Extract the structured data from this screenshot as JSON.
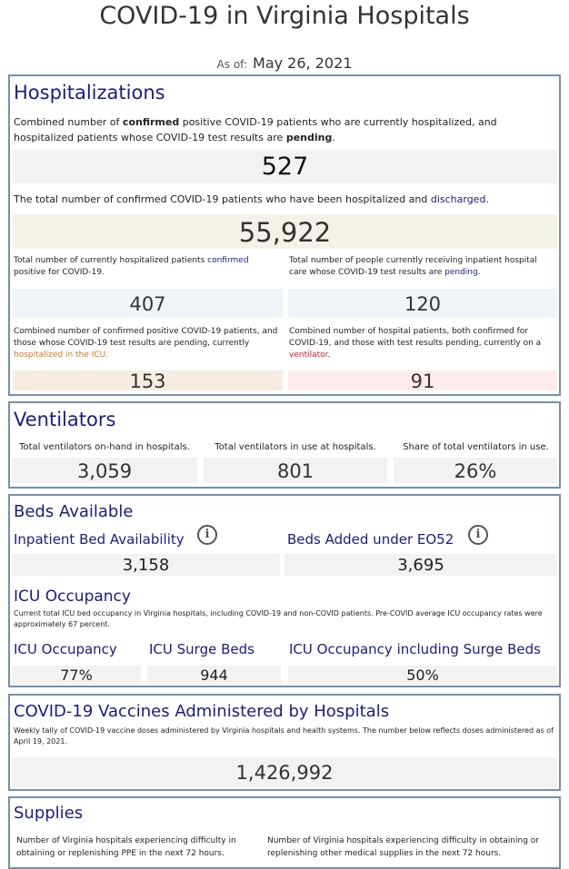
{
  "header": {
    "title": "COVID-19 in Virginia Hospitals",
    "as_of_label": "As of:",
    "as_of_date": "May 26, 2021"
  },
  "hospitalizations": {
    "title": "Hospitalizations",
    "desc1_a": "Combined number of ",
    "desc1_b": "confirmed",
    "desc1_c": " positive COVID-19 patients who are currently hospitalized, and hospitalized patients whose COVID-19 test results are ",
    "desc1_d": "pending",
    "desc1_e": ".",
    "current_total": "527",
    "desc2_a": "The total number of confirmed COVID-19 patients who have been hospitalized and ",
    "desc2_b": "discharged",
    "desc2_c": ".",
    "discharged_total": "55,922",
    "confirmed_a": "Total number of currently hospitalized patients ",
    "confirmed_b": "confirmed",
    "confirmed_c": " positive for COVID-19.",
    "confirmed_value": "407",
    "pending_a": "Total number of people currently receiving inpatient hospital care whose COVID-19 test results are ",
    "pending_b": "pending",
    "pending_c": ".",
    "pending_value": "120",
    "icu_a": "Combined number of confirmed positive COVID-19 patients, and those whose COVID-19 test results are pending, currently ",
    "icu_b": "hospitalized in the ICU.",
    "icu_value": "153",
    "vent_a": "Combined number of hospital patients, both confirmed for COVID-19, and those with test results pending, currently on a ",
    "vent_b": "ventilator",
    "vent_c": ".",
    "vent_value": "91"
  },
  "ventilators": {
    "title": "Ventilators",
    "on_hand_label": "Total ventilators on-hand in hospitals.",
    "on_hand_value": "3,059",
    "in_use_label": "Total ventilators in use at hospitals.",
    "in_use_value": "801",
    "share_label": "Share of total ventilators in use.",
    "share_value": "26%"
  },
  "beds": {
    "title": "Beds Available",
    "inpatient_label": "Inpatient Bed Availability",
    "inpatient_value": "3,158",
    "eo52_label": "Beds Added under EO52",
    "eo52_value": "3,695",
    "info_glyph": "i",
    "icu_title": "ICU Occupancy",
    "icu_desc": "Current total ICU bed occupancy in Virginia hospitals, including COVID-19 and non-COVID patients. Pre-COVID average ICU occupancy rates were approximately 67 percent.",
    "icu_occ_label": "ICU Occupancy",
    "icu_occ_value": "77%",
    "surge_label": "ICU Surge Beds",
    "surge_value": "944",
    "occ_surge_label": "ICU Occupancy including Surge Beds",
    "occ_surge_value": "50%"
  },
  "vaccines": {
    "title": "COVID-19 Vaccines Administered by Hospitals",
    "desc": "Weekly tally of COVID-19 vaccine doses administered by Virginia hospitals and health systems. The number below reflects doses administered as of April 19, 2021.",
    "value": "1,426,992"
  },
  "supplies": {
    "title": "Supplies",
    "ppe_label": "Number of Virginia hospitals experiencing difficulty in obtaining or replenishing PPE in the next 72 hours.",
    "other_label": "Number of Virginia hospitals experiencing difficulty in obtaining or replenishing other medical supplies in the next 72 hours."
  },
  "colors": {
    "accent": "#1b1b87",
    "border": "#7391ac",
    "grey_box": "#f2f2f2",
    "beige_box": "#f4f1e8",
    "blue_box": "#eef4f8",
    "peach_box": "#f7ece0",
    "pink_box": "#fdeaea",
    "orange_text": "#cc7a1a",
    "red_text": "#d0202a"
  }
}
